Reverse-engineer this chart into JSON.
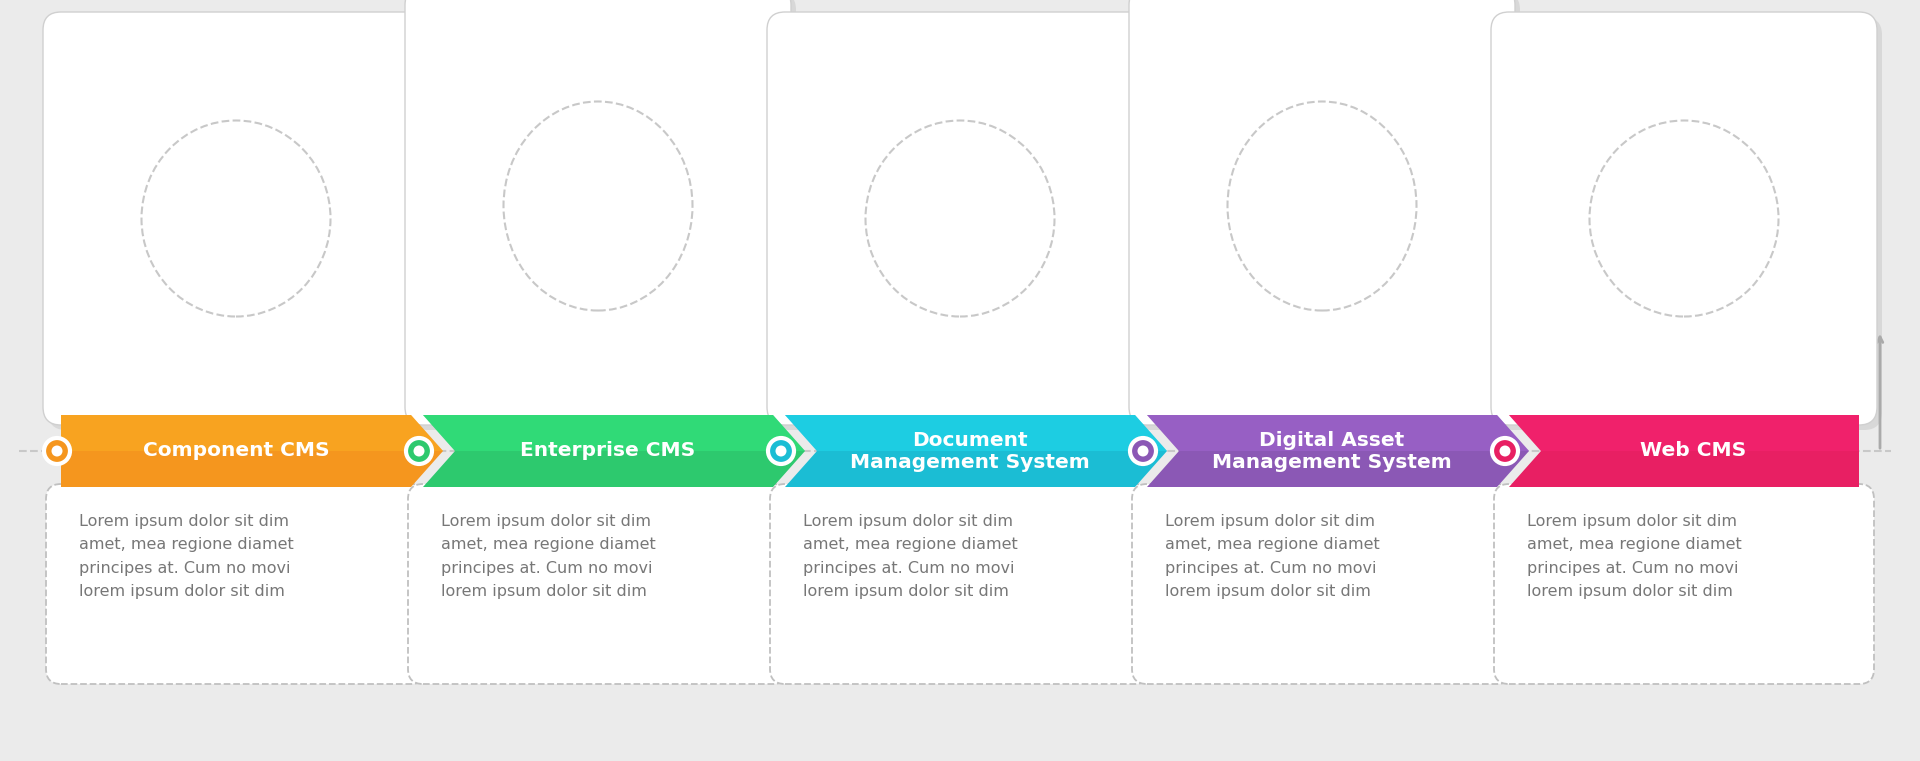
{
  "bg_color": "#ebebeb",
  "steps": [
    {
      "title": "Component CMS",
      "color": "#f5961e",
      "dot_color": "#f5961e",
      "icon_color": "#f5961e",
      "desc": "Lorem ipsum dolor sit dim\namet, mea regione diamet\nprincipes at. Cum no movi\nlorem ipsum dolor sit dim",
      "card_raised": false
    },
    {
      "title": "Enterprise CMS",
      "color": "#2dc96e",
      "dot_color": "#2dc96e",
      "icon_color": "#2dc96e",
      "desc": "Lorem ipsum dolor sit dim\namet, mea regione diamet\nprincipes at. Cum no movi\nlorem ipsum dolor sit dim",
      "card_raised": true
    },
    {
      "title": "Document\nManagement System",
      "color": "#1bbdd4",
      "dot_color": "#1bbdd4",
      "icon_color": "#1bbdd4",
      "desc": "Lorem ipsum dolor sit dim\namet, mea regione diamet\nprincipes at. Cum no movi\nlorem ipsum dolor sit dim",
      "card_raised": false
    },
    {
      "title": "Digital Asset\nManagement System",
      "color": "#8b58b5",
      "dot_color": "#8b58b5",
      "icon_color": "#8b58b5",
      "desc": "Lorem ipsum dolor sit dim\namet, mea regione diamet\nprincipes at. Cum no movi\nlorem ipsum dolor sit dim",
      "card_raised": true
    },
    {
      "title": "Web CMS",
      "color": "#e81f63",
      "dot_color": "#e81f63",
      "icon_color": "#c0325a",
      "desc": "Lorem ipsum dolor sit dim\namet, mea regione diamet\nprincipes at. Cum no movi\nlorem ipsum dolor sit dim",
      "card_raised": false
    }
  ],
  "desc_text_color": "#777777",
  "desc_fontsize": 11.5,
  "title_fontsize": 14.5,
  "n_steps": 5,
  "fig_w": 19.2,
  "fig_h": 7.61
}
